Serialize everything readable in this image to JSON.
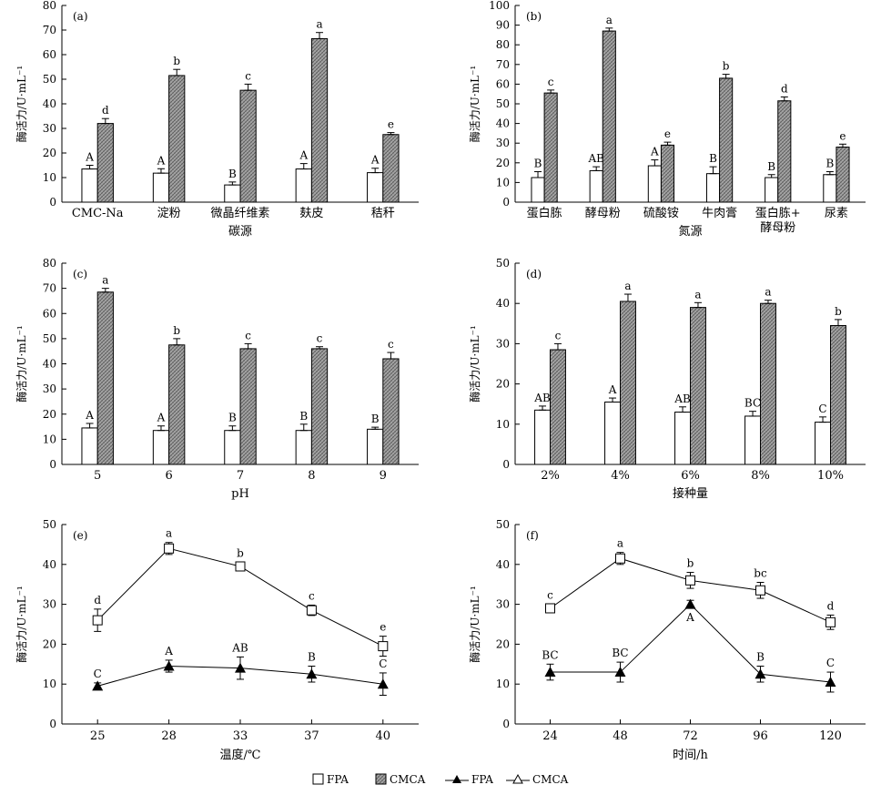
{
  "patterns": {
    "fpa_fill": "#ffffff",
    "cmca_fill": "#9a9a9a",
    "ink": "#000000"
  },
  "chart_data": [
    {
      "id": "a",
      "type": "bar",
      "tag": "(a)",
      "ylabel": "酶活力/U·mL⁻¹",
      "xlabel": "碳源",
      "ylim": [
        0,
        80
      ],
      "yticks": [
        0,
        10,
        20,
        30,
        40,
        50,
        60,
        70,
        80
      ],
      "categories": [
        "CMC-Na",
        "淀粉",
        "微晶纤维素",
        "麸皮",
        "秸秆"
      ],
      "series": [
        {
          "name": "FPA",
          "values": [
            13.5,
            11.8,
            7.0,
            13.5,
            12.0
          ],
          "errors": [
            1.5,
            1.8,
            1.2,
            2.2,
            1.8
          ],
          "labels": [
            "A",
            "A",
            "B",
            "A",
            "A"
          ]
        },
        {
          "name": "CMCA",
          "values": [
            32.0,
            51.5,
            45.5,
            66.5,
            27.5
          ],
          "errors": [
            2.0,
            2.5,
            2.5,
            2.5,
            0.8
          ],
          "labels": [
            "d",
            "b",
            "c",
            "a",
            "e"
          ]
        }
      ]
    },
    {
      "id": "b",
      "type": "bar",
      "tag": "(b)",
      "ylabel": "酶活力/U·mL⁻¹",
      "xlabel": "氮源",
      "ylim": [
        0,
        100
      ],
      "yticks": [
        0,
        10,
        20,
        30,
        40,
        50,
        60,
        70,
        80,
        90,
        100
      ],
      "categories": [
        "蛋白胨",
        "酵母粉",
        "硫酸铵",
        "牛肉膏",
        "蛋白胨+酵母粉",
        "尿素"
      ],
      "category_lines": [
        [
          "蛋白胨"
        ],
        [
          "酵母粉"
        ],
        [
          "硫酸铵"
        ],
        [
          "牛肉膏"
        ],
        [
          "蛋白胨+",
          "酵母粉"
        ],
        [
          "尿素"
        ]
      ],
      "series": [
        {
          "name": "FPA",
          "values": [
            12.5,
            16.0,
            18.5,
            14.5,
            12.5,
            14.0
          ],
          "errors": [
            3.0,
            2.0,
            3.0,
            3.5,
            1.5,
            1.5
          ],
          "labels": [
            "B",
            "AB",
            "A",
            "B",
            "B",
            "B"
          ]
        },
        {
          "name": "CMCA",
          "values": [
            55.5,
            87.0,
            29.0,
            63.0,
            51.5,
            28.0
          ],
          "errors": [
            1.5,
            1.5,
            1.5,
            2.0,
            2.0,
            1.5
          ],
          "labels": [
            "c",
            "a",
            "e",
            "b",
            "d",
            "e"
          ]
        }
      ]
    },
    {
      "id": "c",
      "type": "bar",
      "tag": "(c)",
      "ylabel": "酶活力/U·mL⁻¹",
      "xlabel": "pH",
      "ylim": [
        0,
        80
      ],
      "yticks": [
        0,
        10,
        20,
        30,
        40,
        50,
        60,
        70,
        80
      ],
      "categories": [
        "5",
        "6",
        "7",
        "8",
        "9"
      ],
      "series": [
        {
          "name": "FPA",
          "values": [
            14.5,
            13.5,
            13.5,
            13.5,
            14.0
          ],
          "errors": [
            1.8,
            1.8,
            1.8,
            2.5,
            0.8
          ],
          "labels": [
            "A",
            "A",
            "B",
            "B",
            "B"
          ]
        },
        {
          "name": "CMCA",
          "values": [
            68.5,
            47.5,
            46.0,
            46.0,
            42.0
          ],
          "errors": [
            1.5,
            2.5,
            2.0,
            0.8,
            2.5
          ],
          "labels": [
            "a",
            "b",
            "c",
            "c",
            "c"
          ]
        }
      ]
    },
    {
      "id": "d",
      "type": "bar",
      "tag": "(d)",
      "ylabel": "酶活力/U·mL⁻¹",
      "xlabel": "接种量",
      "ylim": [
        0,
        50
      ],
      "yticks": [
        0,
        10,
        20,
        30,
        40,
        50
      ],
      "categories": [
        "2%",
        "4%",
        "6%",
        "8%",
        "10%"
      ],
      "series": [
        {
          "name": "FPA",
          "values": [
            13.5,
            15.5,
            13.0,
            12.0,
            10.5
          ],
          "errors": [
            1.0,
            1.0,
            1.3,
            1.2,
            1.3
          ],
          "labels": [
            "AB",
            "A",
            "AB",
            "BC",
            "C"
          ]
        },
        {
          "name": "CMCA",
          "values": [
            28.5,
            40.5,
            39.0,
            40.0,
            34.5
          ],
          "errors": [
            1.5,
            1.8,
            1.2,
            0.8,
            1.5
          ],
          "labels": [
            "c",
            "a",
            "a",
            "a",
            "b"
          ]
        }
      ]
    },
    {
      "id": "e",
      "type": "line",
      "tag": "(e)",
      "ylabel": "酶活力/U·mL⁻¹",
      "xlabel": "温度/℃",
      "ylim": [
        0,
        50
      ],
      "yticks": [
        0,
        10,
        20,
        30,
        40,
        50
      ],
      "categories": [
        "25",
        "28",
        "33",
        "37",
        "40"
      ],
      "series": [
        {
          "name": "CMCA",
          "marker": "square",
          "values": [
            26.0,
            44.0,
            39.5,
            28.5,
            19.5
          ],
          "errors": [
            2.8,
            1.5,
            1.0,
            1.3,
            2.5
          ],
          "labels": [
            "d",
            "a",
            "b",
            "c",
            "e"
          ]
        },
        {
          "name": "FPA",
          "marker": "triangle",
          "values": [
            9.5,
            14.5,
            14.0,
            12.5,
            10.0
          ],
          "errors": [
            0.8,
            1.5,
            2.8,
            2.0,
            2.8
          ],
          "labels": [
            "C",
            "A",
            "AB",
            "B",
            "C"
          ]
        }
      ]
    },
    {
      "id": "f",
      "type": "line",
      "tag": "(f)",
      "ylabel": "酶活力/U·mL⁻¹",
      "xlabel": "时间/h",
      "ylim": [
        0,
        50
      ],
      "yticks": [
        0,
        10,
        20,
        30,
        40,
        50
      ],
      "categories": [
        "24",
        "48",
        "72",
        "96",
        "120"
      ],
      "series": [
        {
          "name": "CMCA",
          "marker": "square",
          "values": [
            29.0,
            41.5,
            36.0,
            33.5,
            25.5
          ],
          "errors": [
            1.0,
            1.5,
            2.0,
            2.0,
            1.8
          ],
          "labels": [
            "c",
            "a",
            "b",
            "bc",
            "d"
          ]
        },
        {
          "name": "FPA",
          "marker": "triangle",
          "values": [
            13.0,
            13.0,
            30.0,
            12.5,
            10.5
          ],
          "errors": [
            2.0,
            2.5,
            1.0,
            2.0,
            2.5
          ],
          "labels": [
            "BC",
            "BC",
            "A",
            "B",
            "C"
          ]
        }
      ]
    }
  ],
  "legend": {
    "items": [
      {
        "marker": "open-square",
        "label": "FPA"
      },
      {
        "marker": "hatched-square",
        "label": "CMCA"
      },
      {
        "marker": "filled-triangle-line",
        "label": "FPA"
      },
      {
        "marker": "open-triangle-line",
        "label": "CMCA"
      }
    ]
  }
}
